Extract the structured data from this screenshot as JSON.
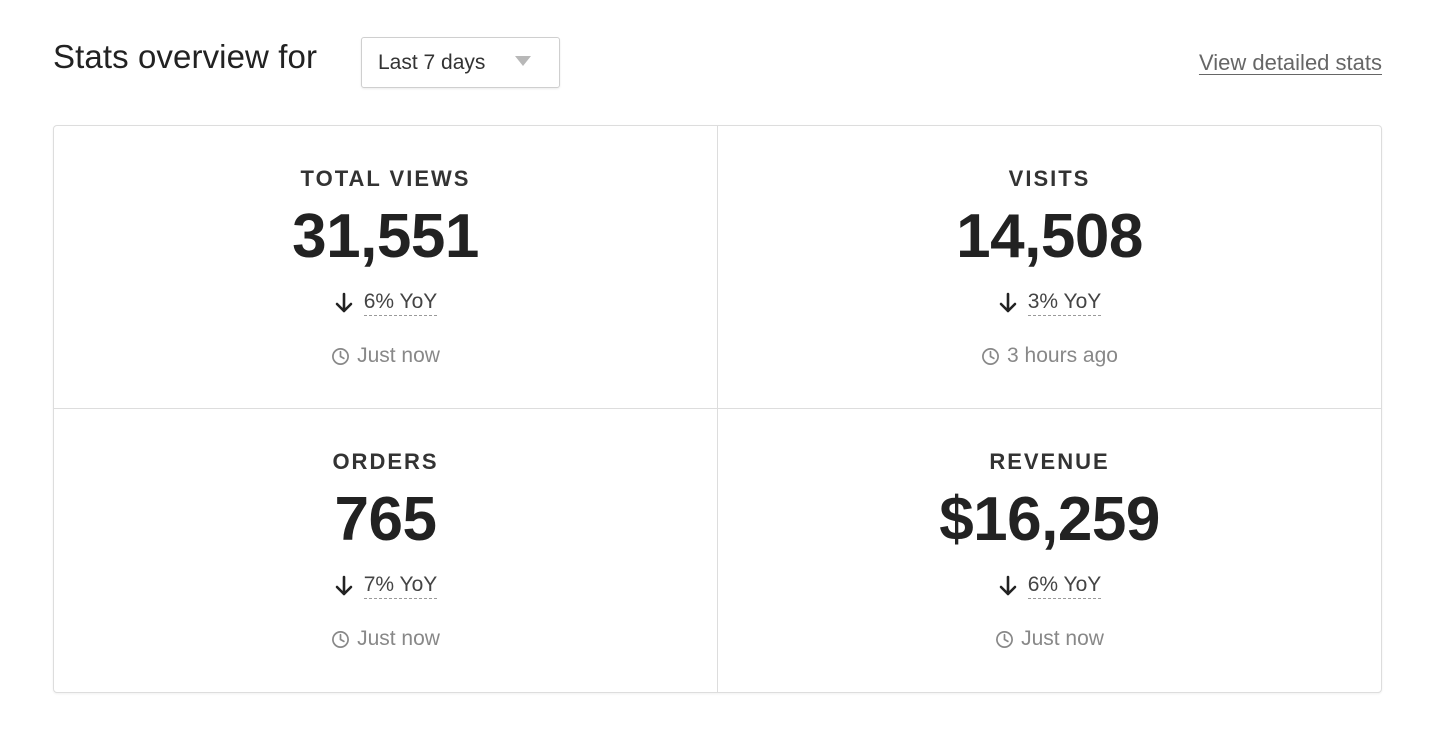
{
  "header": {
    "title": "Stats overview for",
    "range_selected": "Last 7 days",
    "detail_link": "View detailed stats"
  },
  "stats": [
    {
      "label": "TOTAL VIEWS",
      "value": "31,551",
      "change": "6% YoY",
      "direction": "down",
      "updated": "Just now"
    },
    {
      "label": "VISITS",
      "value": "14,508",
      "change": "3% YoY",
      "direction": "down",
      "updated": "3 hours ago"
    },
    {
      "label": "ORDERS",
      "value": "765",
      "change": "7% YoY",
      "direction": "down",
      "updated": "Just now"
    },
    {
      "label": "REVENUE",
      "value": "$16,259",
      "change": "6% YoY",
      "direction": "down",
      "updated": "Just now"
    }
  ],
  "icons": {
    "change": "arrow-down-icon",
    "updated": "clock-icon",
    "select": "chevron-down-icon"
  },
  "colors": {
    "text": "#222222",
    "muted": "#888888",
    "border": "#dddddd"
  }
}
